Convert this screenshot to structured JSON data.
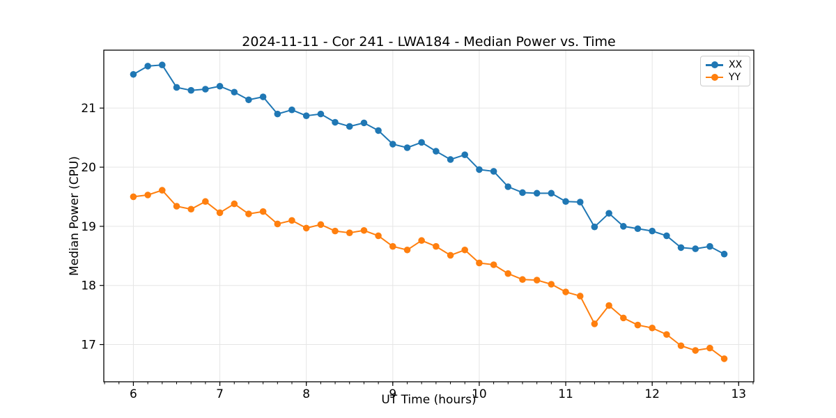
{
  "figure": {
    "background": "#ffffff",
    "text_color": "#000000",
    "grid_color": "#e5e5e5",
    "spine_color": "#000000"
  },
  "chart_data": {
    "type": "line",
    "title": "2024-11-11 - Cor 241 - LWA184 - Median Power vs. Time",
    "xlabel": "UT Time (hours)",
    "ylabel": "Median Power (CPU)",
    "xlim": [
      5.658,
      13.175
    ],
    "ylim": [
      16.37,
      21.98
    ],
    "x_ticks": [
      6,
      7,
      8,
      9,
      10,
      11,
      12,
      13
    ],
    "y_ticks": [
      17,
      18,
      19,
      20,
      21
    ],
    "x_minor_step": 0.166667,
    "grid": true,
    "legend_position": "upper right",
    "marker": "circle",
    "x": [
      6.0,
      6.167,
      6.333,
      6.5,
      6.667,
      6.833,
      7.0,
      7.167,
      7.333,
      7.5,
      7.667,
      7.833,
      8.0,
      8.167,
      8.333,
      8.5,
      8.667,
      8.833,
      9.0,
      9.167,
      9.333,
      9.5,
      9.667,
      9.833,
      10.0,
      10.167,
      10.333,
      10.5,
      10.667,
      10.833,
      11.0,
      11.167,
      11.333,
      11.5,
      11.667,
      11.833,
      12.0,
      12.167,
      12.333,
      12.5,
      12.667,
      12.833
    ],
    "series": [
      {
        "name": "XX",
        "color": "#1f77b4",
        "values": [
          21.57,
          21.71,
          21.73,
          21.35,
          21.3,
          21.32,
          21.37,
          21.27,
          21.14,
          21.19,
          20.9,
          20.97,
          20.87,
          20.9,
          20.76,
          20.69,
          20.75,
          20.62,
          20.39,
          20.33,
          20.42,
          20.27,
          20.13,
          20.21,
          19.96,
          19.93,
          19.67,
          19.57,
          19.56,
          19.56,
          19.42,
          19.41,
          18.99,
          19.22,
          19.0,
          18.96,
          18.92,
          18.84,
          18.64,
          18.62,
          18.66,
          18.53
        ]
      },
      {
        "name": "YY",
        "color": "#ff7f0e",
        "values": [
          19.5,
          19.53,
          19.61,
          19.34,
          19.29,
          19.42,
          19.23,
          19.38,
          19.21,
          19.25,
          19.04,
          19.1,
          18.97,
          19.03,
          18.92,
          18.89,
          18.93,
          18.84,
          18.66,
          18.6,
          18.76,
          18.66,
          18.51,
          18.6,
          18.38,
          18.35,
          18.2,
          18.1,
          18.09,
          18.02,
          17.89,
          17.82,
          17.35,
          17.66,
          17.45,
          17.33,
          17.28,
          17.17,
          16.98,
          16.9,
          16.94,
          16.76
        ]
      }
    ]
  }
}
